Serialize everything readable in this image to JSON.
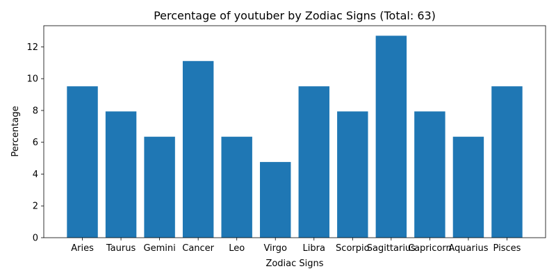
{
  "chart_data": {
    "type": "bar",
    "title": "Percentage of youtuber by Zodiac Signs (Total: 63)",
    "xlabel": "Zodiac Signs",
    "ylabel": "Percentage",
    "categories": [
      "Aries",
      "Taurus",
      "Gemini",
      "Cancer",
      "Leo",
      "Virgo",
      "Libra",
      "Scorpio",
      "Sagittarius",
      "Capricorn",
      "Aquarius",
      "Pisces"
    ],
    "values": [
      9.52,
      7.94,
      6.35,
      11.11,
      6.35,
      4.76,
      9.52,
      7.94,
      12.7,
      7.94,
      6.35,
      9.52
    ],
    "ylim": [
      0,
      13.33
    ],
    "yticks": [
      0,
      2,
      4,
      6,
      8,
      10,
      12
    ],
    "grid": false,
    "legend": "none",
    "bar_color": "#1f77b4"
  }
}
